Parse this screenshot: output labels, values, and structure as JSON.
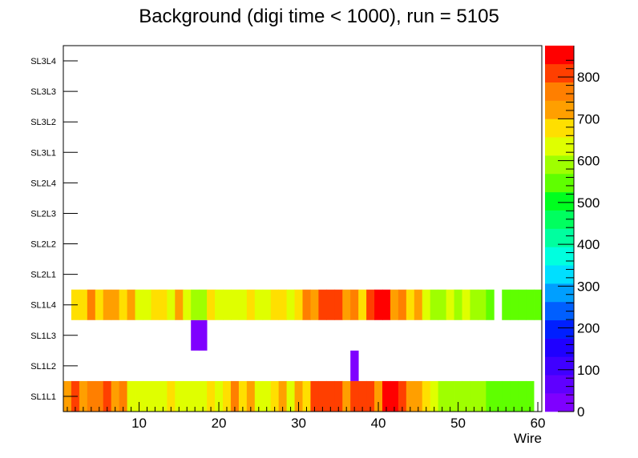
{
  "chart_data": {
    "type": "heatmap",
    "title": "Background (digi time < 1000), run = 5105",
    "xlabel": "Wire",
    "ylabel": "",
    "xlim": [
      0.5,
      60.5
    ],
    "x_ticks": [
      "10",
      "20",
      "30",
      "40",
      "50",
      "60"
    ],
    "y_categories": [
      "SL1L1",
      "SL1L2",
      "SL1L3",
      "SL1L4",
      "SL2L1",
      "SL2L2",
      "SL2L3",
      "SL2L4",
      "SL3L1",
      "SL3L2",
      "SL3L3",
      "SL3L4"
    ],
    "zlim": [
      0,
      875
    ],
    "z_ticks": [
      "0",
      "100",
      "200",
      "300",
      "400",
      "500",
      "600",
      "700",
      "800"
    ],
    "palette": [
      "#7f00ff",
      "#5f00ff",
      "#3f00ff",
      "#1f00ff",
      "#001fff",
      "#005fff",
      "#009fff",
      "#00dfff",
      "#00ffdf",
      "#00ff9f",
      "#00ff5f",
      "#00ff1f",
      "#5fff00",
      "#9fff00",
      "#dfff00",
      "#ffdf00",
      "#ff9f00",
      "#ff7f00",
      "#ff3f00",
      "#ff0000"
    ],
    "rows": {
      "SL1L1": [
        740,
        800,
        700,
        780,
        760,
        790,
        740,
        760,
        650,
        650,
        640,
        620,
        650,
        690,
        620,
        650,
        640,
        620,
        690,
        650,
        670,
        780,
        670,
        700,
        650,
        640,
        660,
        700,
        650,
        730,
        670,
        790,
        790,
        790,
        790,
        740,
        790,
        820,
        820,
        730,
        870,
        870,
        800,
        700,
        720,
        680,
        640,
        600,
        600,
        600,
        600,
        580,
        580,
        560,
        560,
        560,
        560,
        560,
        560,
        null
      ],
      "SL1L2": [
        null,
        null,
        null,
        null,
        null,
        null,
        null,
        null,
        null,
        null,
        null,
        null,
        null,
        null,
        null,
        null,
        null,
        null,
        null,
        null,
        null,
        null,
        null,
        null,
        null,
        null,
        null,
        null,
        null,
        null,
        null,
        null,
        null,
        null,
        null,
        null,
        40,
        null,
        null,
        null,
        null,
        null,
        null,
        null,
        null,
        null,
        null,
        null,
        null,
        null,
        null,
        null,
        null,
        null,
        null,
        null,
        null,
        null,
        null,
        null
      ],
      "SL1L3": [
        null,
        null,
        null,
        null,
        null,
        null,
        null,
        null,
        null,
        null,
        null,
        null,
        null,
        null,
        null,
        null,
        40,
        40,
        null,
        null,
        null,
        null,
        null,
        null,
        null,
        null,
        null,
        null,
        null,
        null,
        null,
        null,
        null,
        null,
        null,
        null,
        null,
        null,
        null,
        null,
        null,
        null,
        null,
        null,
        null,
        null,
        null,
        null,
        null,
        null,
        null,
        null,
        null,
        null,
        null,
        null,
        null,
        null,
        null,
        null
      ],
      "SL1L4": [
        null,
        680,
        690,
        750,
        680,
        700,
        700,
        680,
        700,
        620,
        650,
        690,
        680,
        650,
        700,
        620,
        590,
        590,
        680,
        620,
        650,
        650,
        650,
        690,
        650,
        650,
        690,
        690,
        650,
        690,
        780,
        740,
        790,
        790,
        790,
        700,
        750,
        690,
        820,
        870,
        870,
        700,
        750,
        680,
        700,
        650,
        600,
        600,
        640,
        600,
        640,
        580,
        600,
        560,
        null,
        560,
        560,
        560,
        560,
        560
      ]
    }
  }
}
